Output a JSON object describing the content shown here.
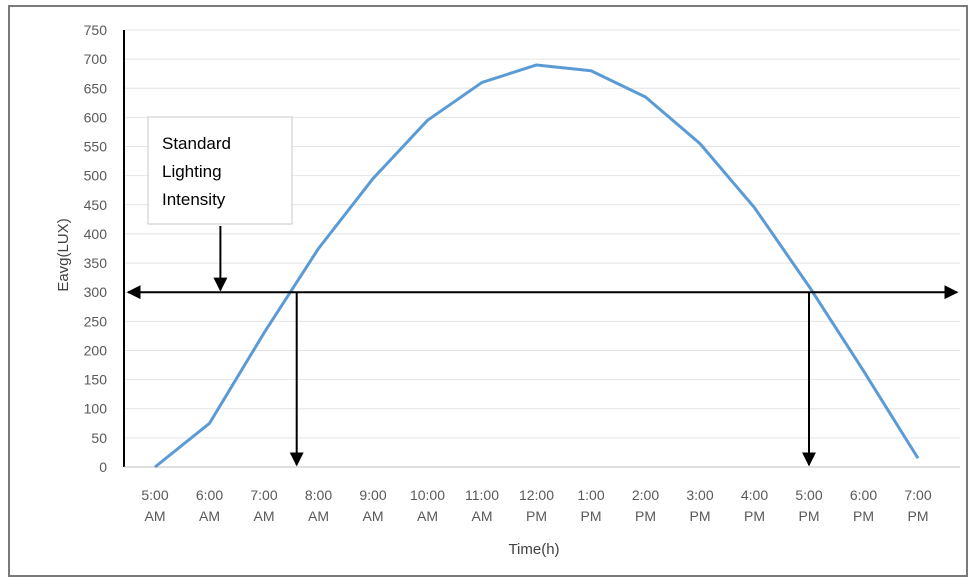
{
  "chart_data": {
    "type": "line",
    "title": "",
    "xlabel": "Time(h)",
    "ylabel": "Eavg(LUX)",
    "categories": [
      [
        "5:00",
        "AM"
      ],
      [
        "6:00",
        "AM"
      ],
      [
        "7:00",
        "AM"
      ],
      [
        "8:00",
        "AM"
      ],
      [
        "9:00",
        "AM"
      ],
      [
        "10:00",
        "AM"
      ],
      [
        "11:00",
        "AM"
      ],
      [
        "12:00",
        "PM"
      ],
      [
        "1:00",
        "PM"
      ],
      [
        "2:00",
        "PM"
      ],
      [
        "3:00",
        "PM"
      ],
      [
        "4:00",
        "PM"
      ],
      [
        "5:00",
        "PM"
      ],
      [
        "6:00",
        "PM"
      ],
      [
        "7:00",
        "PM"
      ]
    ],
    "series": [
      {
        "values": [
          0,
          75,
          230,
          375,
          495,
          595,
          660,
          690,
          680,
          635,
          555,
          445,
          310,
          165,
          15
        ],
        "color": "#5b9bd5"
      }
    ],
    "ylim": [
      0,
      750
    ],
    "yticks": [
      0,
      50,
      100,
      150,
      200,
      250,
      300,
      350,
      400,
      450,
      500,
      550,
      600,
      650,
      700,
      750
    ],
    "grid": true,
    "reference_line": {
      "value": 300
    },
    "crossings": [
      7.6,
      17.0
    ],
    "annotation": {
      "lines": [
        "Standard",
        "Lighting",
        "Intensity"
      ],
      "arrow_at_x": 6.2
    }
  }
}
